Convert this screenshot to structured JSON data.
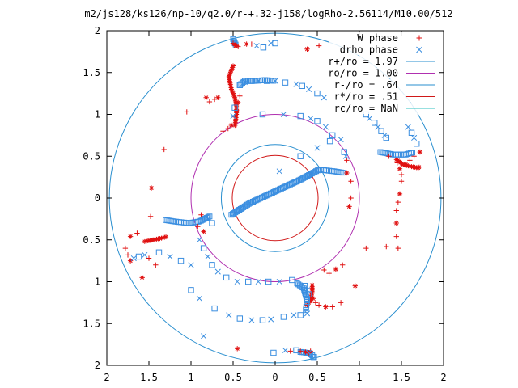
{
  "chart_data": {
    "type": "scatter",
    "title": "m2/js128/ks126/np-10/q2.0/r-+.32-j158/logRho-2.56114/M10.00/512",
    "xlabel": "",
    "ylabel": "",
    "xlim": [
      -2,
      2
    ],
    "ylim": [
      -2,
      2
    ],
    "x_tick_values": [
      -2,
      -1.5,
      -1,
      -0.5,
      0,
      0.5,
      1,
      1.5,
      2
    ],
    "x_tick_labels": [
      "2",
      "1.5",
      "1",
      "0.5",
      "0",
      "0.5",
      "1",
      "1.5",
      "2"
    ],
    "y_tick_values": [
      2,
      1.5,
      1,
      0.5,
      0,
      -0.5,
      -1,
      -1.5,
      -2
    ],
    "y_tick_labels": [
      "2",
      "1.5",
      "1",
      "0.5",
      "0",
      "0.5",
      "1",
      "1.5",
      "2"
    ],
    "grid": false,
    "legend_position": "top-right",
    "legend": [
      {
        "label": "W phase",
        "marker": "plus",
        "color": "#e01010"
      },
      {
        "label": "drho phase",
        "marker": "x",
        "color": "#3a8ee0"
      },
      {
        "label": "r+/ro = 1.97",
        "line": true,
        "color": "#2a8fcf"
      },
      {
        "label": "ro/ro = 1.00",
        "line": true,
        "color": "#b030b0"
      },
      {
        "label": "r-/ro = .64",
        "line": true,
        "color": "#2a8fcf"
      },
      {
        "label": "r*/ro = .51",
        "line": true,
        "color": "#d01818"
      },
      {
        "label": "rc/ro = NaN",
        "line": true,
        "color": "#30c0c0"
      }
    ],
    "circles": [
      {
        "name": "r+/ro = 1.97",
        "r": 1.97,
        "color": "#2a8fcf"
      },
      {
        "name": "ro/ro = 1.00",
        "r": 1.0,
        "color": "#b030b0"
      },
      {
        "name": "r-/ro = .64",
        "r": 0.64,
        "color": "#2a8fcf"
      },
      {
        "name": "r*/ro = .51",
        "r": 0.51,
        "color": "#d01818"
      }
    ],
    "series": [
      {
        "name": "W phase",
        "marker": "plus",
        "color": "#e01010",
        "points": [
          [
            0.38,
            1.78
          ],
          [
            -0.5,
            1.85
          ],
          [
            -0.48,
            1.83
          ],
          [
            -0.47,
            1.82
          ],
          [
            -0.46,
            1.82
          ],
          [
            -0.44,
            1.81
          ],
          [
            -0.34,
            1.84
          ],
          [
            -0.28,
            1.84
          ],
          [
            -0.42,
            1.22
          ],
          [
            -0.44,
            1.14
          ],
          [
            -0.46,
            1.05
          ],
          [
            -0.48,
            0.97
          ],
          [
            -0.52,
            0.87
          ],
          [
            -0.56,
            0.83
          ],
          [
            -0.62,
            0.8
          ],
          [
            -0.68,
            1.2
          ],
          [
            -0.72,
            1.18
          ],
          [
            -0.78,
            1.15
          ],
          [
            -0.82,
            1.2
          ],
          [
            -1.05,
            1.03
          ],
          [
            -1.32,
            0.58
          ],
          [
            -1.47,
            0.12
          ],
          [
            -1.48,
            -0.22
          ],
          [
            -1.64,
            -0.42
          ],
          [
            -1.72,
            -0.46
          ],
          [
            -1.78,
            -0.6
          ],
          [
            -1.75,
            -0.68
          ],
          [
            -1.72,
            -0.75
          ],
          [
            -1.5,
            -0.72
          ],
          [
            -1.42,
            -0.8
          ],
          [
            -1.58,
            -0.95
          ],
          [
            -0.88,
            -0.2
          ],
          [
            -0.92,
            -0.34
          ],
          [
            -0.85,
            -0.4
          ],
          [
            1.35,
            0.5
          ],
          [
            1.45,
            0.42
          ],
          [
            1.48,
            0.35
          ],
          [
            1.5,
            0.28
          ],
          [
            1.5,
            0.2
          ],
          [
            1.48,
            0.05
          ],
          [
            1.46,
            -0.05
          ],
          [
            1.44,
            -0.15
          ],
          [
            1.44,
            -0.3
          ],
          [
            1.44,
            -0.46
          ],
          [
            1.46,
            -0.6
          ],
          [
            1.55,
            0.4
          ],
          [
            1.6,
            0.45
          ],
          [
            1.65,
            0.5
          ],
          [
            1.72,
            0.55
          ],
          [
            0.52,
            1.82
          ],
          [
            0.8,
            -0.8
          ],
          [
            0.72,
            -0.85
          ],
          [
            0.64,
            -0.9
          ],
          [
            0.58,
            -0.86
          ],
          [
            0.45,
            -1.2
          ],
          [
            0.48,
            -1.25
          ],
          [
            0.52,
            -1.28
          ],
          [
            0.6,
            -1.3
          ],
          [
            0.68,
            -1.3
          ],
          [
            0.78,
            -1.25
          ],
          [
            0.95,
            -1.05
          ],
          [
            1.08,
            -0.6
          ],
          [
            1.32,
            -0.58
          ],
          [
            -0.45,
            -1.8
          ],
          [
            0.18,
            -1.83
          ],
          [
            0.3,
            -1.83
          ],
          [
            0.36,
            -1.84
          ],
          [
            0.4,
            -1.85
          ],
          [
            0.42,
            -1.83
          ],
          [
            0.85,
            0.3
          ],
          [
            0.9,
            0.2
          ],
          [
            0.9,
            0.0
          ],
          [
            0.88,
            -0.1
          ],
          [
            0.85,
            0.45
          ]
        ]
      },
      {
        "name": "drho phase",
        "marker": "x",
        "color": "#3a8ee0",
        "points": [
          [
            0.0,
            1.85
          ],
          [
            -0.22,
            1.82
          ],
          [
            -0.14,
            1.8
          ],
          [
            -0.05,
            1.85
          ],
          [
            -0.42,
            1.35
          ],
          [
            -0.35,
            1.38
          ],
          [
            -0.28,
            1.4
          ],
          [
            -0.2,
            1.4
          ],
          [
            -0.1,
            1.4
          ],
          [
            0.0,
            1.4
          ],
          [
            0.12,
            1.38
          ],
          [
            0.25,
            1.36
          ],
          [
            0.32,
            1.34
          ],
          [
            0.4,
            1.3
          ],
          [
            0.5,
            1.25
          ],
          [
            0.58,
            1.2
          ],
          [
            -0.48,
            1.08
          ],
          [
            -0.5,
            0.98
          ],
          [
            -0.15,
            1.0
          ],
          [
            0.1,
            1.0
          ],
          [
            0.3,
            0.98
          ],
          [
            0.42,
            0.95
          ],
          [
            0.5,
            0.92
          ],
          [
            0.6,
            0.85
          ],
          [
            0.68,
            0.75
          ],
          [
            0.78,
            0.7
          ],
          [
            0.82,
            0.55
          ],
          [
            0.84,
            0.5
          ],
          [
            1.08,
            1.0
          ],
          [
            1.12,
            0.95
          ],
          [
            1.18,
            0.9
          ],
          [
            1.22,
            0.85
          ],
          [
            1.26,
            0.8
          ],
          [
            1.3,
            0.75
          ],
          [
            1.32,
            0.72
          ],
          [
            1.58,
            0.85
          ],
          [
            1.62,
            0.78
          ],
          [
            1.65,
            0.72
          ],
          [
            1.68,
            0.65
          ],
          [
            -0.9,
            -0.5
          ],
          [
            -0.85,
            -0.6
          ],
          [
            -0.8,
            -0.7
          ],
          [
            -0.75,
            -0.8
          ],
          [
            -0.68,
            -0.88
          ],
          [
            -0.58,
            -0.95
          ],
          [
            -0.45,
            -1.0
          ],
          [
            -0.32,
            -1.0
          ],
          [
            -0.2,
            -1.0
          ],
          [
            -0.08,
            -1.0
          ],
          [
            0.05,
            -1.0
          ],
          [
            0.2,
            -0.98
          ],
          [
            -1.0,
            -0.8
          ],
          [
            -1.12,
            -0.75
          ],
          [
            -1.25,
            -0.7
          ],
          [
            -1.38,
            -0.65
          ],
          [
            -1.55,
            -0.68
          ],
          [
            -1.62,
            -0.7
          ],
          [
            -1.68,
            -0.72
          ],
          [
            -1.0,
            -1.1
          ],
          [
            -0.9,
            -1.2
          ],
          [
            -0.72,
            -1.32
          ],
          [
            -0.55,
            -1.4
          ],
          [
            -0.42,
            -1.44
          ],
          [
            -0.28,
            -1.46
          ],
          [
            -0.15,
            -1.46
          ],
          [
            -0.05,
            -1.45
          ],
          [
            0.1,
            -1.42
          ],
          [
            0.22,
            -1.4
          ],
          [
            0.3,
            -1.4
          ],
          [
            0.38,
            -1.38
          ],
          [
            0.35,
            -1.05
          ],
          [
            0.38,
            -1.1
          ],
          [
            0.4,
            -1.15
          ],
          [
            -0.85,
            -1.65
          ],
          [
            -0.02,
            -1.85
          ],
          [
            0.12,
            -1.82
          ],
          [
            0.25,
            -1.82
          ],
          [
            0.4,
            -1.85
          ],
          [
            0.46,
            -1.9
          ],
          [
            -0.8,
            -0.25
          ],
          [
            -0.75,
            -0.3
          ],
          [
            0.05,
            0.32
          ],
          [
            0.3,
            0.5
          ],
          [
            0.5,
            0.6
          ],
          [
            0.65,
            0.68
          ]
        ]
      }
    ],
    "bands": [
      {
        "series": "W phase",
        "color": "#e01010",
        "marker": "plus",
        "path": [
          [
            -0.5,
            1.58
          ],
          [
            -0.55,
            1.45
          ],
          [
            -0.52,
            1.3
          ],
          [
            -0.48,
            1.2
          ],
          [
            -0.46,
            1.1
          ],
          [
            -0.46,
            1.0
          ],
          [
            -0.48,
            0.85
          ]
        ]
      },
      {
        "series": "W phase",
        "color": "#e01010",
        "marker": "plus",
        "path": [
          [
            -1.55,
            -0.52
          ],
          [
            -1.45,
            -0.5
          ],
          [
            -1.35,
            -0.48
          ],
          [
            -1.28,
            -0.46
          ]
        ]
      },
      {
        "series": "W phase",
        "color": "#e01010",
        "marker": "plus",
        "path": [
          [
            1.44,
            0.46
          ],
          [
            1.52,
            0.4
          ],
          [
            1.6,
            0.38
          ],
          [
            1.7,
            0.36
          ],
          [
            1.72,
            0.38
          ]
        ]
      },
      {
        "series": "W phase",
        "color": "#e01010",
        "marker": "plus",
        "path": [
          [
            0.38,
            -1.28
          ],
          [
            0.42,
            -1.22
          ],
          [
            0.44,
            -1.12
          ],
          [
            0.44,
            -1.02
          ]
        ]
      },
      {
        "series": "drho phase",
        "color": "#3a8ee0",
        "marker": "x",
        "path": [
          [
            -0.42,
            1.35
          ],
          [
            -0.36,
            1.4
          ],
          [
            -0.25,
            1.4
          ],
          [
            -0.12,
            1.41
          ],
          [
            0.0,
            1.4
          ]
        ]
      },
      {
        "series": "drho phase",
        "color": "#3a8ee0",
        "marker": "x",
        "path": [
          [
            -0.52,
            -0.2
          ],
          [
            -0.3,
            -0.06
          ],
          [
            0.0,
            0.08
          ],
          [
            0.3,
            0.22
          ],
          [
            0.52,
            0.34
          ],
          [
            0.7,
            0.32
          ],
          [
            0.82,
            0.3
          ]
        ]
      },
      {
        "series": "drho phase",
        "color": "#3a8ee0",
        "marker": "x",
        "path": [
          [
            -0.78,
            -0.22
          ],
          [
            -0.9,
            -0.28
          ],
          [
            -1.02,
            -0.3
          ],
          [
            -1.2,
            -0.28
          ],
          [
            -1.32,
            -0.26
          ]
        ]
      },
      {
        "series": "drho phase",
        "color": "#3a8ee0",
        "marker": "x",
        "path": [
          [
            1.25,
            0.55
          ],
          [
            1.4,
            0.52
          ],
          [
            1.55,
            0.52
          ],
          [
            1.65,
            0.55
          ]
        ]
      },
      {
        "series": "drho phase",
        "color": "#3a8ee0",
        "marker": "x",
        "path": [
          [
            0.26,
            -1.02
          ],
          [
            0.34,
            -1.08
          ],
          [
            0.38,
            -1.22
          ],
          [
            0.36,
            -1.36
          ]
        ]
      },
      {
        "series": "drho phase",
        "color": "#3a8ee0",
        "marker": "x",
        "path": [
          [
            -0.5,
            1.9
          ],
          [
            -0.48,
            1.85
          ],
          [
            -0.46,
            1.82
          ]
        ]
      },
      {
        "series": "drho phase",
        "color": "#3a8ee0",
        "marker": "x",
        "path": [
          [
            0.3,
            -1.84
          ],
          [
            0.38,
            -1.85
          ],
          [
            0.44,
            -1.88
          ],
          [
            0.46,
            -1.92
          ]
        ]
      }
    ]
  }
}
